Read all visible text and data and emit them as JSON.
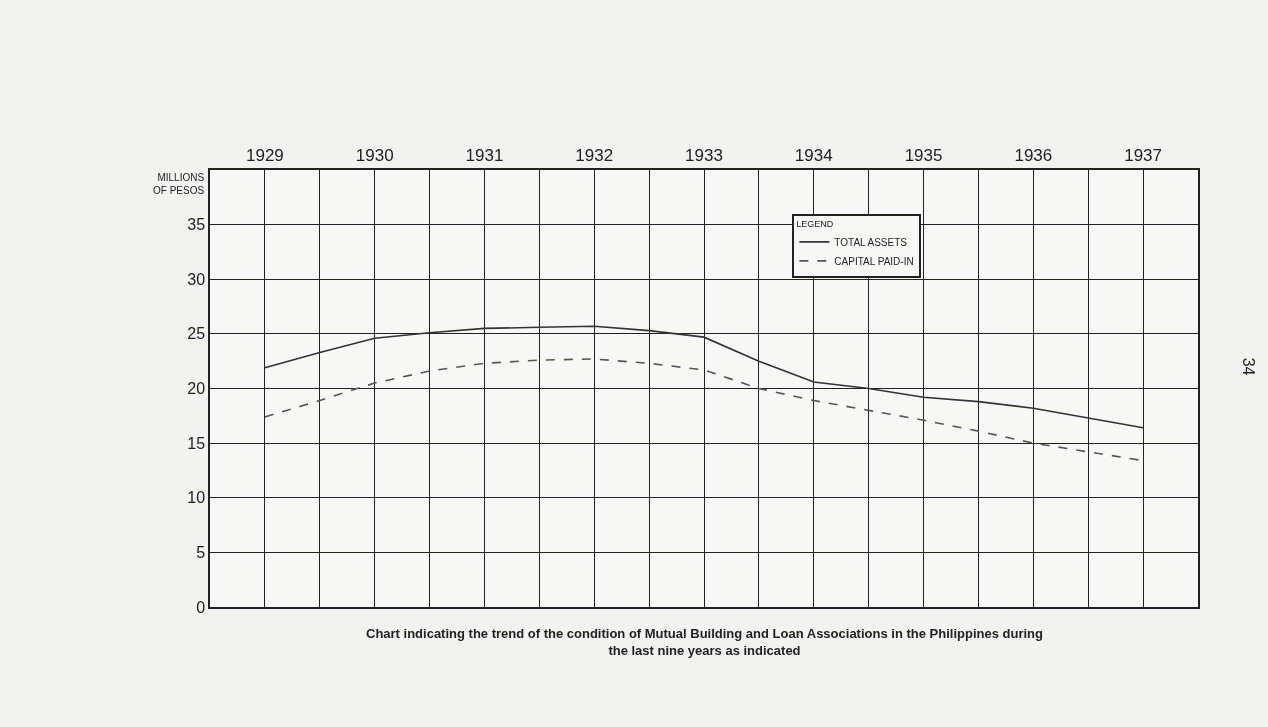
{
  "chart_data": {
    "type": "line",
    "title": "Chart indicating the trend of the condition of Mutual Building and Loan Associations in the Philippines during the last nine years as indicated",
    "ylabel": "MILLIONS OF PESOS",
    "legend_title": "LEGEND",
    "x": [
      1929,
      1929.5,
      1930,
      1930.5,
      1931,
      1931.5,
      1932,
      1932.5,
      1933,
      1933.5,
      1934,
      1934.5,
      1935,
      1935.5,
      1936,
      1936.5,
      1937
    ],
    "series": [
      {
        "name": "TOTAL ASSETS",
        "color": "#333333",
        "line_style": "solid",
        "values": [
          21.9,
          23.3,
          24.6,
          25.1,
          25.5,
          25.6,
          25.7,
          25.3,
          24.7,
          22.5,
          20.6,
          20.0,
          19.2,
          18.8,
          18.2,
          17.3,
          16.4
        ]
      },
      {
        "name": "CAPITAL PAID-IN",
        "color": "#555555",
        "line_style": "dashed",
        "values": [
          17.4,
          18.9,
          20.5,
          21.6,
          22.3,
          22.6,
          22.7,
          22.3,
          21.7,
          20.0,
          18.9,
          18.0,
          17.1,
          16.1,
          15.0,
          14.2,
          13.4
        ]
      }
    ],
    "xlim": [
      1928.5,
      1937.5
    ],
    "xticks": [
      {
        "value": 1928.5,
        "label": null
      },
      1929,
      {
        "value": 1929.5,
        "label": null
      },
      1930,
      {
        "value": 1930.5,
        "label": null
      },
      1931,
      {
        "value": 1931.5,
        "label": null
      },
      1932,
      {
        "value": 1932.5,
        "label": null
      },
      1933,
      {
        "value": 1933.5,
        "label": null
      },
      1934,
      {
        "value": 1934.5,
        "label": null
      },
      1935,
      {
        "value": 1935.5,
        "label": null
      },
      1936,
      {
        "value": 1936.5,
        "label": null
      },
      1937,
      {
        "value": 1937.5,
        "label": null
      }
    ],
    "ylim": [
      0,
      40
    ],
    "yticks": [
      0,
      5,
      10,
      15,
      20,
      25,
      30,
      35
    ],
    "grid": true,
    "legend": "top right",
    "marker": "none",
    "annotations": [
      "34"
    ]
  }
}
